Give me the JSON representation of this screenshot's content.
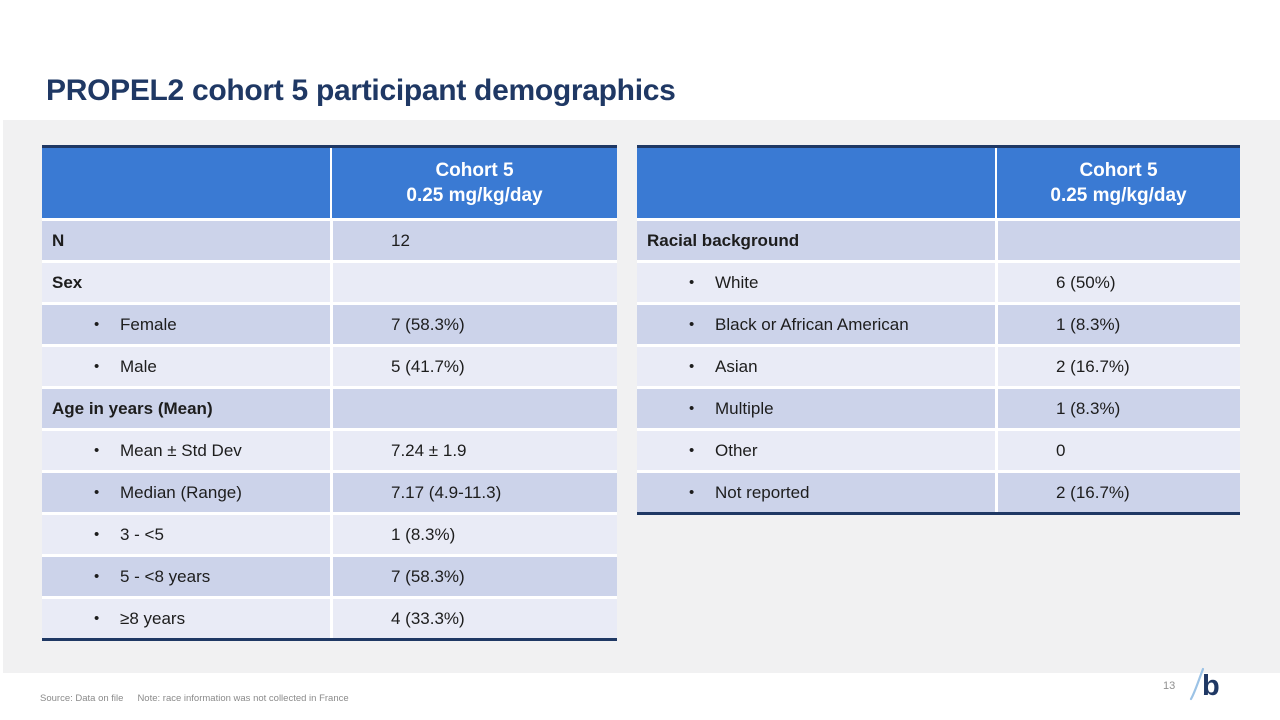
{
  "slide": {
    "title": "PROPEL2 cohort 5 participant demographics",
    "page_number": "13",
    "footer": {
      "source": "Source: Data on file",
      "note": "Note: race information was not collected in France"
    },
    "logo_letter": "b"
  },
  "bullet_char": "•",
  "colors": {
    "header_blue": "#3a7ad3",
    "navy": "#1f3864",
    "band_dark": "#ccd3ea",
    "band_light": "#e9ebf6",
    "panel_gray": "#f1f1f2",
    "footer_gray": "#8a8a8a"
  },
  "tables": [
    {
      "id": "demographics",
      "header": {
        "line1": "Cohort 5",
        "line2": "0.25 mg/kg/day"
      },
      "rows": [
        {
          "label": "N",
          "value": "12",
          "bold": true,
          "bullet": false
        },
        {
          "label": "Sex",
          "value": "",
          "bold": true,
          "bullet": false
        },
        {
          "label": "Female",
          "value": "7 (58.3%)",
          "bold": false,
          "bullet": true
        },
        {
          "label": "Male",
          "value": "5 (41.7%)",
          "bold": false,
          "bullet": true
        },
        {
          "label": "Age in years (Mean)",
          "value": "",
          "bold": true,
          "bullet": false
        },
        {
          "label": "Mean ± Std Dev",
          "value": "7.24 ± 1.9",
          "bold": false,
          "bullet": true
        },
        {
          "label": "Median (Range)",
          "value": "7.17 (4.9-11.3)",
          "bold": false,
          "bullet": true
        },
        {
          "label": "3 - <5",
          "value": "1 (8.3%)",
          "bold": false,
          "bullet": true
        },
        {
          "label": "5 - <8 years",
          "value": "7 (58.3%)",
          "bold": false,
          "bullet": true
        },
        {
          "label": "≥8 years",
          "value": "4 (33.3%)",
          "bold": false,
          "bullet": true
        }
      ]
    },
    {
      "id": "racial-background",
      "header": {
        "line1": "Cohort 5",
        "line2": "0.25 mg/kg/day"
      },
      "rows": [
        {
          "label": "Racial background",
          "value": "",
          "bold": true,
          "bullet": false
        },
        {
          "label": "White",
          "value": "6 (50%)",
          "bold": false,
          "bullet": true
        },
        {
          "label": "Black or African American",
          "value": "1 (8.3%)",
          "bold": false,
          "bullet": true
        },
        {
          "label": "Asian",
          "value": "2 (16.7%)",
          "bold": false,
          "bullet": true
        },
        {
          "label": "Multiple",
          "value": "1 (8.3%)",
          "bold": false,
          "bullet": true
        },
        {
          "label": "Other",
          "value": "0",
          "bold": false,
          "bullet": true
        },
        {
          "label": "Not reported",
          "value": "2 (16.7%)",
          "bold": false,
          "bullet": true
        }
      ]
    }
  ]
}
